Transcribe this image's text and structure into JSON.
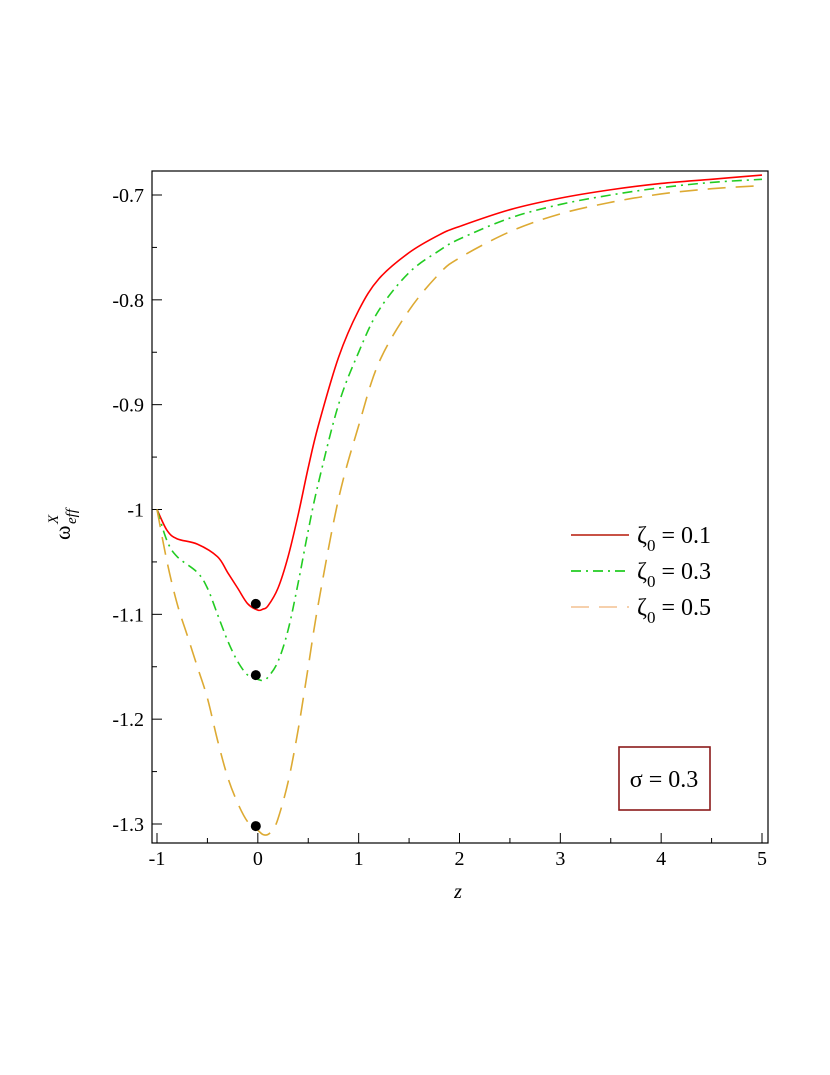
{
  "chart_data": {
    "type": "line",
    "xlabel": "z",
    "ylabel": "ω",
    "ylabel_sup": "X",
    "ylabel_sub": "eff",
    "xlim": [
      -1,
      5
    ],
    "ylim": [
      -1.32,
      -0.675
    ],
    "x_ticks": [
      -1,
      0,
      1,
      2,
      3,
      4,
      5
    ],
    "x_tick_labels": [
      "-1",
      "0",
      "1",
      "2",
      "3",
      "4",
      "5"
    ],
    "y_ticks": [
      -1.3,
      -1.2,
      -1.1,
      -1.0,
      -0.9,
      -0.8,
      -0.7
    ],
    "y_tick_labels": [
      "-1.3",
      "-1.2",
      "-1.1",
      "-1",
      "-0.9",
      "-0.8",
      "-0.7"
    ],
    "grid": false,
    "legend_position": "center-right",
    "annotation": {
      "text": "σ = 0.3"
    },
    "series": [
      {
        "name": "ζ0 = 0.1",
        "legend_base": "ζ",
        "legend_sub": "0",
        "legend_rest": " = 0.1",
        "color": "#ff0000",
        "legend_color": "#c0392b",
        "dash": "solid",
        "x": [
          -1.0,
          -0.9,
          -0.8,
          -0.6,
          -0.4,
          -0.3,
          -0.2,
          -0.1,
          0.0,
          0.05,
          0.1,
          0.2,
          0.3,
          0.4,
          0.5,
          0.6,
          0.8,
          1.0,
          1.2,
          1.5,
          1.8,
          2.0,
          2.5,
          3.0,
          3.5,
          4.0,
          4.5,
          5.0
        ],
        "y": [
          -1.0,
          -1.02,
          -1.028,
          -1.033,
          -1.045,
          -1.06,
          -1.075,
          -1.09,
          -1.096,
          -1.095,
          -1.092,
          -1.075,
          -1.045,
          -1.005,
          -0.96,
          -0.92,
          -0.855,
          -0.81,
          -0.78,
          -0.755,
          -0.738,
          -0.73,
          -0.714,
          -0.703,
          -0.695,
          -0.689,
          -0.685,
          -0.681
        ],
        "min_marker": {
          "x": -0.02,
          "y": -1.09
        }
      },
      {
        "name": "ζ0 = 0.3",
        "legend_base": "ζ",
        "legend_sub": "0",
        "legend_rest": " = 0.3",
        "color": "#22cc22",
        "legend_color": "#22cc22",
        "dash": "dashdot",
        "x": [
          -1.0,
          -0.9,
          -0.8,
          -0.6,
          -0.5,
          -0.4,
          -0.3,
          -0.2,
          -0.1,
          0.0,
          0.05,
          0.1,
          0.2,
          0.3,
          0.4,
          0.5,
          0.6,
          0.8,
          1.0,
          1.2,
          1.5,
          1.8,
          2.0,
          2.5,
          3.0,
          3.5,
          4.0,
          4.5,
          5.0
        ],
        "y": [
          -1.0,
          -1.03,
          -1.045,
          -1.06,
          -1.075,
          -1.1,
          -1.125,
          -1.145,
          -1.158,
          -1.162,
          -1.163,
          -1.16,
          -1.145,
          -1.115,
          -1.07,
          -1.02,
          -0.975,
          -0.9,
          -0.85,
          -0.81,
          -0.774,
          -0.753,
          -0.742,
          -0.722,
          -0.709,
          -0.7,
          -0.693,
          -0.688,
          -0.685
        ],
        "min_marker": {
          "x": -0.02,
          "y": -1.158
        }
      },
      {
        "name": "ζ0 = 0.5",
        "legend_base": "ζ",
        "legend_sub": "0",
        "legend_rest": " = 0.5",
        "color": "#ddaa33",
        "legend_color": "#f5c9a0",
        "dash": "longdash",
        "x": [
          -1.0,
          -0.9,
          -0.8,
          -0.7,
          -0.6,
          -0.5,
          -0.4,
          -0.3,
          -0.2,
          -0.1,
          0.0,
          0.05,
          0.1,
          0.15,
          0.2,
          0.3,
          0.4,
          0.5,
          0.6,
          0.8,
          1.0,
          1.2,
          1.5,
          1.8,
          2.0,
          2.5,
          3.0,
          3.5,
          4.0,
          4.5,
          5.0
        ],
        "y": [
          -1.0,
          -1.05,
          -1.09,
          -1.12,
          -1.15,
          -1.18,
          -1.22,
          -1.255,
          -1.28,
          -1.298,
          -1.306,
          -1.31,
          -1.31,
          -1.305,
          -1.295,
          -1.26,
          -1.21,
          -1.15,
          -1.09,
          -0.99,
          -0.92,
          -0.86,
          -0.81,
          -0.775,
          -0.76,
          -0.735,
          -0.718,
          -0.707,
          -0.699,
          -0.694,
          -0.691
        ],
        "min_marker": {
          "x": -0.02,
          "y": -1.302
        }
      }
    ]
  }
}
